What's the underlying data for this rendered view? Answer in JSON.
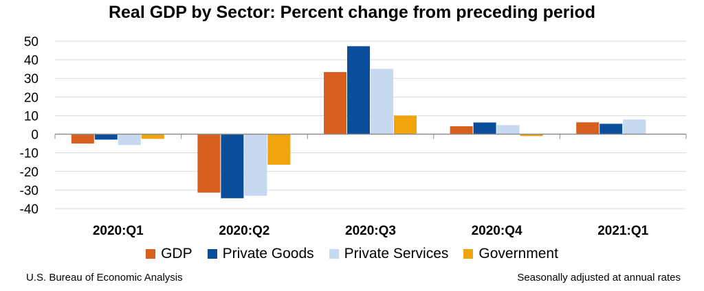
{
  "chart_data": {
    "type": "bar",
    "title": "Real GDP by Sector:  Percent change from preceding period",
    "categories": [
      "2020:Q1",
      "2020:Q2",
      "2020:Q3",
      "2020:Q4",
      "2021:Q1"
    ],
    "series": [
      {
        "name": "GDP",
        "color": "#d95f1e",
        "values": [
          -5.0,
          -31.4,
          33.4,
          4.3,
          6.4
        ]
      },
      {
        "name": "Private Goods",
        "color": "#0a4d9a",
        "values": [
          -2.9,
          -34.4,
          47.3,
          6.3,
          5.6
        ]
      },
      {
        "name": "Private Services",
        "color": "#c6d9f1",
        "values": [
          -5.8,
          -33.1,
          35.1,
          4.9,
          7.9
        ]
      },
      {
        "name": "Government",
        "color": "#f0a30a",
        "values": [
          -2.5,
          -16.4,
          10.0,
          -1.0,
          0.0
        ]
      }
    ],
    "ylim": [
      -40,
      50
    ],
    "yticks": [
      50,
      40,
      30,
      20,
      10,
      0,
      -10,
      -20,
      -30,
      -40
    ],
    "grid": true,
    "legend_position": "bottom"
  },
  "footer": {
    "source": "U.S. Bureau of Economic Analysis",
    "note": "Seasonally adjusted at annual rates"
  }
}
